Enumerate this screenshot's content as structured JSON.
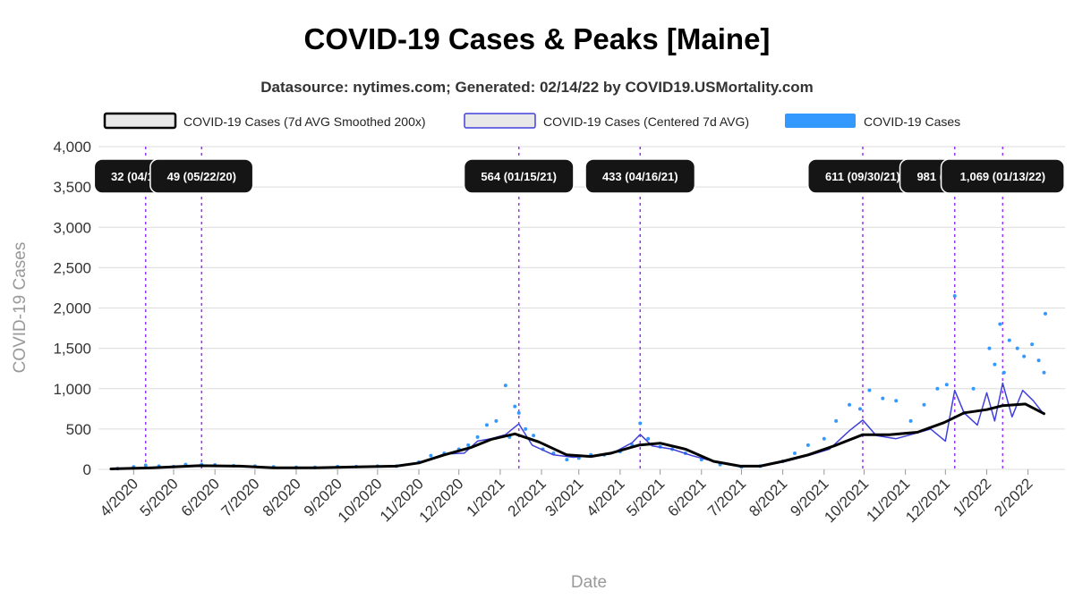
{
  "chart_data": {
    "type": "line",
    "title": "COVID-19 Cases & Peaks [Maine]",
    "subtitle": "Datasource: nytimes.com; Generated: 02/14/22 by COVID19.USMortality.com",
    "xlabel": "Date",
    "ylabel": "COVID-19 Cases",
    "ylim": [
      0,
      4000
    ],
    "yticks": [
      "0",
      "500",
      "1,000",
      "1,500",
      "2,000",
      "2,500",
      "3,000",
      "3,500",
      "4,000"
    ],
    "xticks": [
      "4/2020",
      "5/2020",
      "6/2020",
      "7/2020",
      "8/2020",
      "9/2020",
      "10/2020",
      "11/2020",
      "12/2020",
      "1/2021",
      "2/2021",
      "3/2021",
      "4/2021",
      "5/2021",
      "6/2021",
      "7/2021",
      "8/2021",
      "9/2021",
      "10/2021",
      "11/2021",
      "12/2021",
      "1/2022",
      "2/2022"
    ],
    "grid": true,
    "legend_position": "top",
    "series": [
      {
        "name": "COVID-19 Cases (7d AVG Smoothed 200x)",
        "style": "line",
        "color": "#000000",
        "x": [
          "2020-03-15",
          "2020-04-15",
          "2020-05-20",
          "2020-06-20",
          "2020-07-15",
          "2020-08-15",
          "2020-09-15",
          "2020-10-15",
          "2020-11-01",
          "2020-11-20",
          "2020-12-10",
          "2020-12-25",
          "2021-01-12",
          "2021-01-30",
          "2021-02-20",
          "2021-03-10",
          "2021-03-25",
          "2021-04-15",
          "2021-05-01",
          "2021-05-20",
          "2021-06-10",
          "2021-06-30",
          "2021-07-15",
          "2021-08-01",
          "2021-08-20",
          "2021-09-10",
          "2021-09-30",
          "2021-10-20",
          "2021-11-10",
          "2021-11-30",
          "2021-12-15",
          "2022-01-01",
          "2022-01-13",
          "2022-01-30",
          "2022-02-13"
        ],
        "values": [
          5,
          20,
          45,
          40,
          20,
          20,
          30,
          40,
          80,
          180,
          270,
          370,
          440,
          340,
          180,
          160,
          200,
          300,
          325,
          250,
          100,
          40,
          40,
          100,
          180,
          300,
          430,
          430,
          460,
          580,
          700,
          740,
          790,
          810,
          690
        ]
      },
      {
        "name": "COVID-19 Cases (Centered 7d AVG)",
        "style": "line",
        "color": "#4040dd",
        "x": [
          "2020-03-15",
          "2020-04-15",
          "2020-05-20",
          "2020-06-20",
          "2020-07-15",
          "2020-08-15",
          "2020-09-15",
          "2020-10-15",
          "2020-11-01",
          "2020-11-20",
          "2020-12-05",
          "2020-12-15",
          "2020-12-25",
          "2021-01-05",
          "2021-01-15",
          "2021-01-25",
          "2021-02-10",
          "2021-02-25",
          "2021-03-10",
          "2021-03-25",
          "2021-04-10",
          "2021-04-16",
          "2021-04-25",
          "2021-05-10",
          "2021-05-25",
          "2021-06-10",
          "2021-06-30",
          "2021-07-15",
          "2021-08-01",
          "2021-08-20",
          "2021-09-05",
          "2021-09-20",
          "2021-09-30",
          "2021-10-10",
          "2021-10-25",
          "2021-11-05",
          "2021-11-20",
          "2021-12-01",
          "2021-12-08",
          "2021-12-15",
          "2021-12-25",
          "2022-01-01",
          "2022-01-07",
          "2022-01-13",
          "2022-01-20",
          "2022-01-28",
          "2022-02-05",
          "2022-02-13"
        ],
        "values": [
          5,
          25,
          45,
          40,
          20,
          20,
          30,
          40,
          80,
          190,
          200,
          350,
          380,
          430,
          564,
          300,
          180,
          150,
          170,
          190,
          330,
          433,
          290,
          250,
          170,
          100,
          40,
          40,
          90,
          170,
          250,
          480,
          611,
          420,
          380,
          430,
          500,
          350,
          980,
          700,
          550,
          950,
          600,
          1069,
          650,
          980,
          850,
          680
        ]
      },
      {
        "name": "COVID-19 Cases",
        "style": "scatter",
        "color": "#3399ff",
        "x": [
          "2020-03-20",
          "2020-04-01",
          "2020-04-10",
          "2020-04-20",
          "2020-05-01",
          "2020-05-10",
          "2020-05-22",
          "2020-06-01",
          "2020-06-15",
          "2020-07-01",
          "2020-07-15",
          "2020-08-01",
          "2020-08-15",
          "2020-09-01",
          "2020-09-15",
          "2020-10-01",
          "2020-10-15",
          "2020-11-01",
          "2020-11-10",
          "2020-11-20",
          "2020-12-01",
          "2020-12-08",
          "2020-12-15",
          "2020-12-22",
          "2020-12-29",
          "2021-01-05",
          "2021-01-08",
          "2021-01-12",
          "2021-01-15",
          "2021-01-20",
          "2021-01-26",
          "2021-02-02",
          "2021-02-10",
          "2021-02-20",
          "2021-03-01",
          "2021-03-10",
          "2021-03-20",
          "2021-04-01",
          "2021-04-10",
          "2021-04-16",
          "2021-04-22",
          "2021-05-01",
          "2021-05-10",
          "2021-05-20",
          "2021-06-01",
          "2021-06-15",
          "2021-07-01",
          "2021-07-15",
          "2021-08-01",
          "2021-08-10",
          "2021-08-20",
          "2021-09-01",
          "2021-09-10",
          "2021-09-20",
          "2021-09-28",
          "2021-10-05",
          "2021-10-15",
          "2021-10-25",
          "2021-11-05",
          "2021-11-15",
          "2021-11-25",
          "2021-12-02",
          "2021-12-08",
          "2021-12-15",
          "2021-12-22",
          "2022-01-03",
          "2022-01-07",
          "2022-01-11",
          "2022-01-14",
          "2022-01-18",
          "2022-01-24",
          "2022-01-29",
          "2022-02-04",
          "2022-02-09",
          "2022-02-13",
          "2022-02-14"
        ],
        "values": [
          10,
          30,
          50,
          40,
          35,
          60,
          60,
          55,
          45,
          40,
          30,
          25,
          25,
          35,
          35,
          40,
          40,
          90,
          170,
          200,
          250,
          300,
          400,
          550,
          600,
          1040,
          400,
          780,
          700,
          500,
          420,
          250,
          200,
          120,
          140,
          180,
          180,
          220,
          300,
          570,
          380,
          280,
          250,
          200,
          120,
          60,
          30,
          40,
          100,
          200,
          300,
          380,
          600,
          800,
          750,
          980,
          880,
          850,
          600,
          800,
          1000,
          1050,
          2150,
          700,
          1000,
          1500,
          1300,
          1800,
          1200,
          1600,
          1500,
          1400,
          1550,
          1350,
          1200,
          1930
        ]
      }
    ],
    "peaks": [
      {
        "label": "32 (04/10/20)",
        "date": "2020-04-10"
      },
      {
        "label": "49 (05/22/20)",
        "date": "2020-05-22"
      },
      {
        "label": "564 (01/15/21)",
        "date": "2021-01-15"
      },
      {
        "label": "433 (04/16/21)",
        "date": "2021-04-16"
      },
      {
        "label": "611 (09/30/21)",
        "date": "2021-09-30"
      },
      {
        "label": "981 (12/08/21)",
        "date": "2021-12-08"
      },
      {
        "label": "1,069 (01/13/22)",
        "date": "2022-01-13"
      }
    ]
  }
}
